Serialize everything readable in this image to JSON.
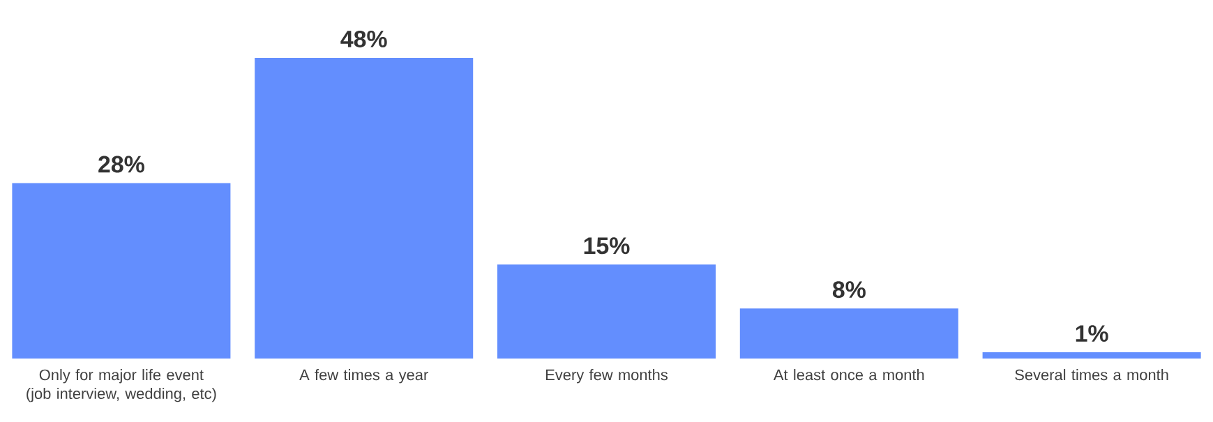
{
  "chart_data": {
    "type": "bar",
    "categories": [
      "Only for major life event (job interview, wedding, etc)",
      "A few times a year",
      "Every few months",
      "At least once a month",
      "Several times a month"
    ],
    "values": [
      28,
      48,
      15,
      8,
      1
    ],
    "value_labels": [
      "28%",
      "48%",
      "15%",
      "8%",
      "1%"
    ],
    "color": "#638efe"
  }
}
